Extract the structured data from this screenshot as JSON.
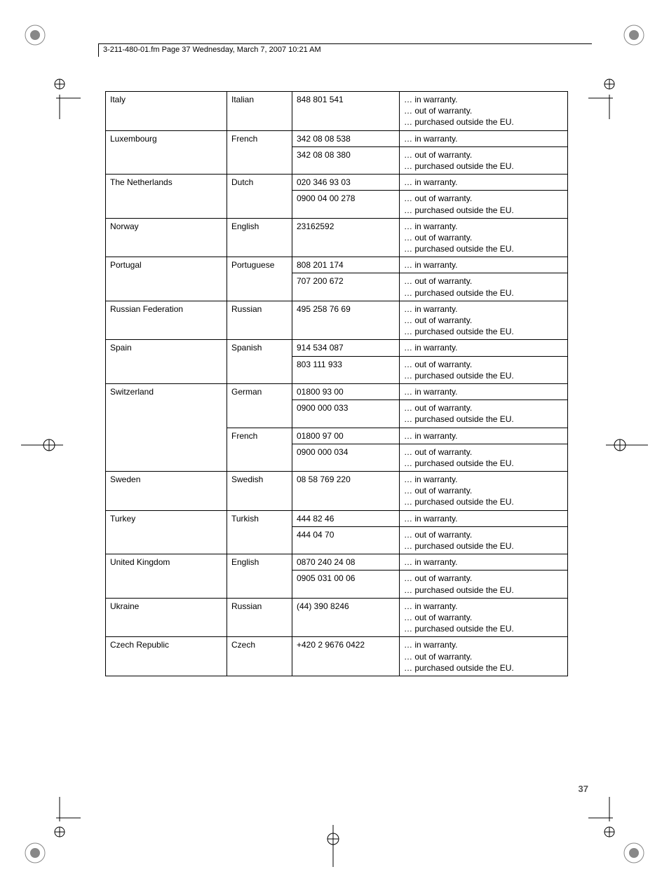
{
  "header": {
    "text": "3-211-480-01.fm  Page 37  Wednesday, March 7, 2007  10:21 AM"
  },
  "page_number": "37",
  "conditions": {
    "in": "… in warranty.",
    "out": "… out of warranty.",
    "eu": "… purchased outside the EU."
  },
  "rows": [
    {
      "country": "Italy",
      "language": "Italian",
      "phones": [
        {
          "number": "848 801 541",
          "cond": [
            "in",
            "out",
            "eu"
          ]
        }
      ]
    },
    {
      "country": "Luxembourg",
      "language": "French",
      "phones": [
        {
          "number": "342 08 08 538",
          "cond": [
            "in"
          ]
        },
        {
          "number": "342 08 08 380",
          "cond": [
            "out",
            "eu"
          ]
        }
      ]
    },
    {
      "country": "The Netherlands",
      "language": "Dutch",
      "phones": [
        {
          "number": "020 346 93 03",
          "cond": [
            "in"
          ]
        },
        {
          "number": "0900 04 00 278",
          "cond": [
            "out",
            "eu"
          ]
        }
      ]
    },
    {
      "country": "Norway",
      "language": "English",
      "phones": [
        {
          "number": "23162592",
          "cond": [
            "in",
            "out",
            "eu"
          ]
        }
      ]
    },
    {
      "country": "Portugal",
      "language": "Portuguese",
      "phones": [
        {
          "number": "808 201 174",
          "cond": [
            "in"
          ]
        },
        {
          "number": "707 200 672",
          "cond": [
            "out",
            "eu"
          ]
        }
      ]
    },
    {
      "country": "Russian Federation",
      "language": "Russian",
      "phones": [
        {
          "number": "495 258 76 69",
          "cond": [
            "in",
            "out",
            "eu"
          ]
        }
      ]
    },
    {
      "country": "Spain",
      "language": "Spanish",
      "phones": [
        {
          "number": "914 534 087",
          "cond": [
            "in"
          ]
        },
        {
          "number": "803 111 933",
          "cond": [
            "out",
            "eu"
          ]
        }
      ]
    },
    {
      "country": "Switzerland",
      "language": "German",
      "phones": [
        {
          "number": "01800 93 00",
          "cond": [
            "in"
          ]
        },
        {
          "number": "0900 000 033",
          "cond": [
            "out",
            "eu"
          ]
        }
      ],
      "extra_lang": [
        {
          "language": "French",
          "phones": [
            {
              "number": "01800 97 00",
              "cond": [
                "in"
              ]
            },
            {
              "number": "0900 000 034",
              "cond": [
                "out",
                "eu"
              ]
            }
          ]
        }
      ]
    },
    {
      "country": "Sweden",
      "language": "Swedish",
      "phones": [
        {
          "number": "08 58 769 220",
          "cond": [
            "in",
            "out",
            "eu"
          ]
        }
      ]
    },
    {
      "country": "Turkey",
      "language": "Turkish",
      "phones": [
        {
          "number": "444 82 46",
          "cond": [
            "in"
          ]
        },
        {
          "number": "444 04 70",
          "cond": [
            "out",
            "eu"
          ]
        }
      ]
    },
    {
      "country": "United Kingdom",
      "language": "English",
      "phones": [
        {
          "number": "0870 240 24 08",
          "cond": [
            "in"
          ]
        },
        {
          "number": "0905 031 00 06",
          "cond": [
            "out",
            "eu"
          ]
        }
      ]
    },
    {
      "country": "Ukraine",
      "language": "Russian",
      "phones": [
        {
          "number": "(44) 390 8246",
          "cond": [
            "in",
            "out",
            "eu"
          ]
        }
      ]
    },
    {
      "country": "Czech Republic",
      "language": "Czech",
      "phones": [
        {
          "number": "+420 2 9676 0422",
          "cond": [
            "in",
            "out",
            "eu"
          ]
        }
      ]
    }
  ]
}
